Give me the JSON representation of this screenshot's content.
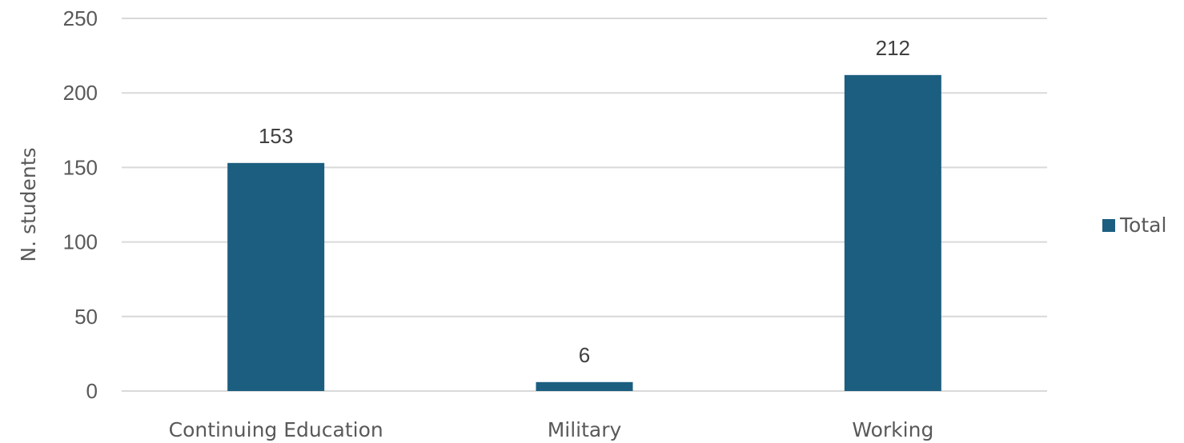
{
  "chart_data": {
    "type": "bar",
    "title": "",
    "xlabel": "",
    "ylabel": "N. students",
    "categories": [
      "Continuing Education",
      "Military",
      "Working"
    ],
    "series": [
      {
        "name": "Total",
        "values": [
          153,
          6,
          212
        ],
        "color": "#1b5e80"
      }
    ],
    "ylim": [
      0,
      250
    ],
    "yticks": [
      0,
      50,
      100,
      150,
      200,
      250
    ],
    "grid": true,
    "legend": "right",
    "data_labels": true,
    "colors": {
      "bar": "#1b5e80",
      "grid": "#d9d9d9",
      "text": "#595959",
      "label": "#404040"
    }
  }
}
